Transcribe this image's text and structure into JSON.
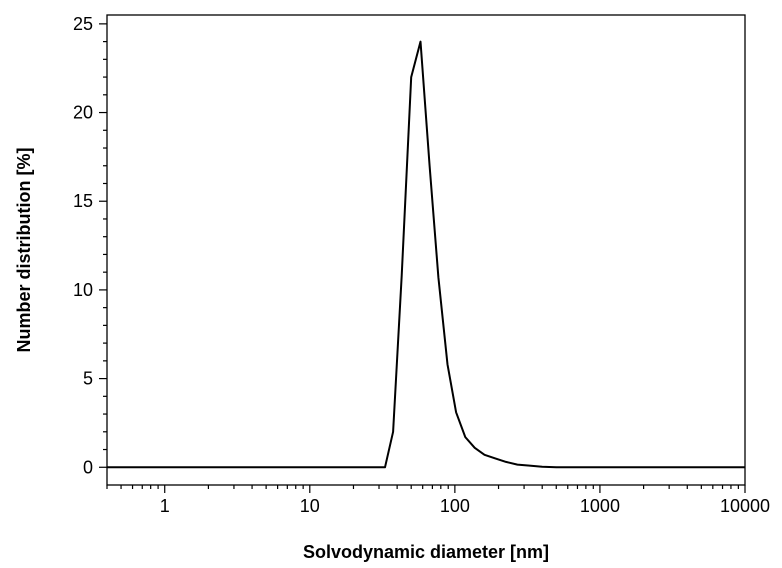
{
  "chart_data": {
    "type": "line",
    "title": "",
    "xlabel": "Solvodynamic diameter [nm]",
    "ylabel": "Number distribution [%]",
    "xscale": "log",
    "xlim": [
      0.4,
      10000
    ],
    "ylim": [
      -1,
      25.5
    ],
    "grid": false,
    "legend": "none",
    "x_ticks": [
      1,
      10,
      100,
      1000,
      10000
    ],
    "x_tick_labels": [
      "1",
      "10",
      "100",
      "1000",
      "10000"
    ],
    "y_ticks": [
      0,
      5,
      10,
      15,
      20,
      25
    ],
    "y_tick_labels": [
      "0",
      "5",
      "10",
      "15",
      "20",
      "25"
    ],
    "line_color": "#000000",
    "series": [
      {
        "x": [
          0.4,
          33,
          37.5,
          43,
          50,
          58,
          67,
          77,
          89,
          102,
          118,
          137,
          160,
          190,
          225,
          270,
          320,
          400,
          500,
          1000,
          10000
        ],
        "y": [
          0,
          0,
          2.0,
          10.8,
          22.0,
          24.0,
          17.0,
          10.7,
          5.8,
          3.1,
          1.7,
          1.1,
          0.7,
          0.5,
          0.3,
          0.15,
          0.1,
          0.03,
          0,
          0,
          0
        ]
      }
    ]
  }
}
